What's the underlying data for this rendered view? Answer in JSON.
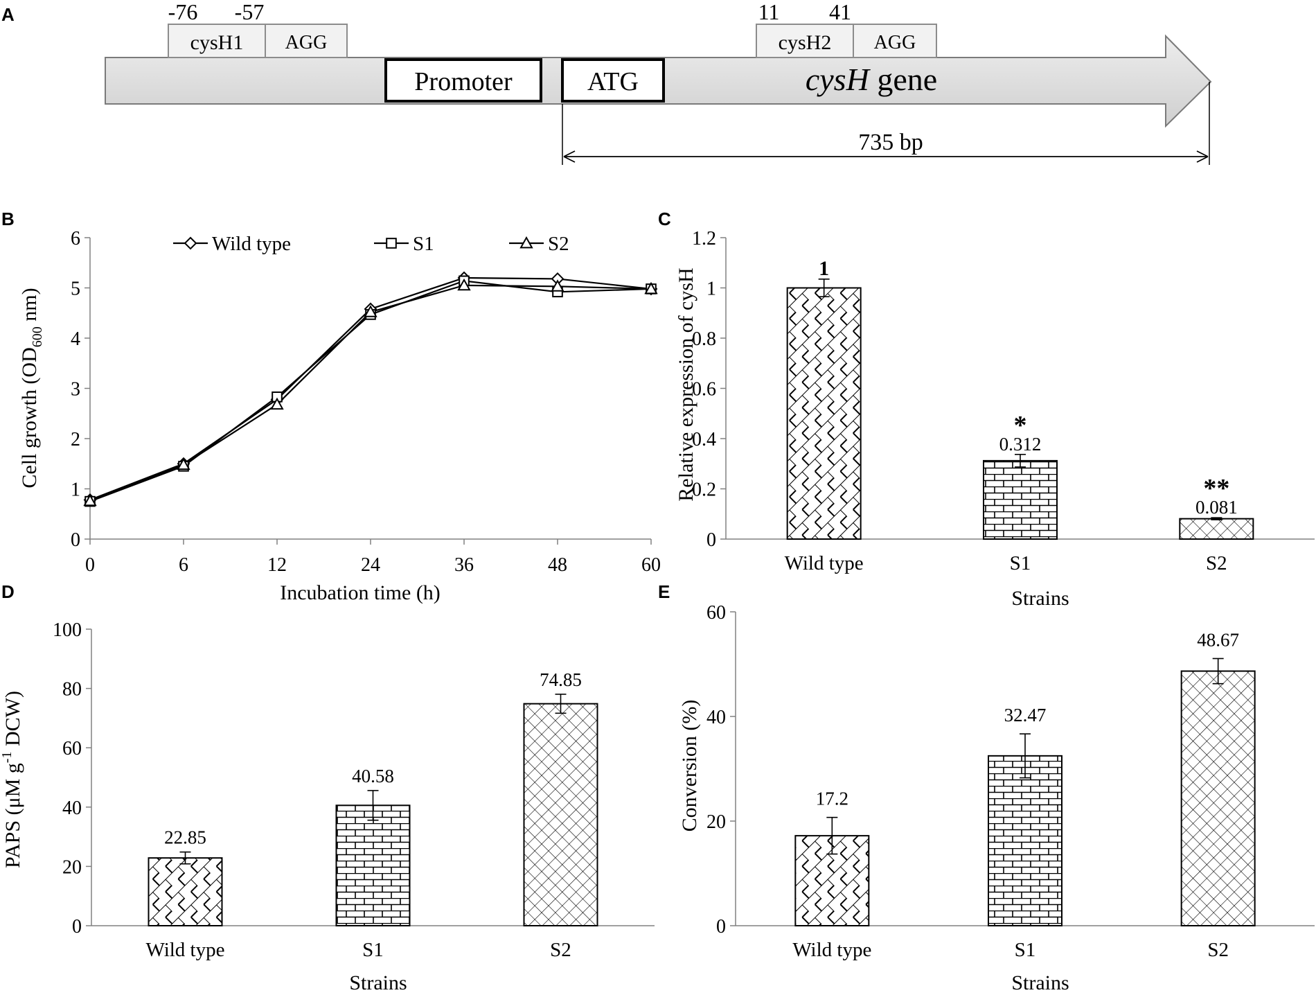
{
  "panel_labels": {
    "a": "A",
    "b": "B",
    "c": "C",
    "d": "D",
    "e": "E"
  },
  "gene_map": {
    "positions": {
      "p1": "-76",
      "p2": "-57",
      "p3": "11",
      "p4": "41"
    },
    "boxes": {
      "cysH1": "cysH1",
      "agg1": "AGG",
      "cysH2": "cysH2",
      "agg2": "AGG",
      "promoter": "Promoter",
      "atg": "ATG"
    },
    "gene_label_italic": "cysH",
    "gene_label_rest": " gene",
    "length_label": "735 bp"
  },
  "colors": {
    "axis": "#808080",
    "ink": "#000000",
    "arrow_fill": "#dcdcdc"
  },
  "chart_data": [
    {
      "id": "B",
      "type": "line",
      "title": "",
      "xlabel": "Incubation time (h)",
      "ylabel_main": "Cell growth (OD",
      "ylabel_sub": "600",
      "ylabel_tail": " nm)",
      "categories": [
        "0",
        "6",
        "12",
        "24",
        "36",
        "48",
        "60"
      ],
      "ylim": [
        0,
        6
      ],
      "yticks": [
        "0",
        "1",
        "2",
        "3",
        "4",
        "5",
        "6"
      ],
      "series": [
        {
          "name": "Wild type",
          "marker": "diamond",
          "values": [
            0.78,
            1.5,
            2.78,
            4.58,
            5.2,
            5.18,
            4.98
          ]
        },
        {
          "name": "S1",
          "marker": "square",
          "values": [
            0.75,
            1.45,
            2.83,
            4.47,
            5.14,
            4.92,
            4.98
          ]
        },
        {
          "name": "S2",
          "marker": "triangle",
          "values": [
            0.76,
            1.48,
            2.68,
            4.52,
            5.05,
            5.03,
            4.98
          ]
        }
      ]
    },
    {
      "id": "C",
      "type": "bar",
      "title": "",
      "xlabel": "Strains",
      "ylabel": "Relative expression of cysH",
      "categories": [
        "Wild type",
        "S1",
        "S2"
      ],
      "values": [
        1,
        0.312,
        0.081
      ],
      "errors": [
        0.035,
        0.025,
        0.004
      ],
      "data_labels": [
        "1",
        "0.312",
        "0.081"
      ],
      "significance": [
        "",
        "*",
        "**"
      ],
      "ylim": [
        0,
        1.2
      ],
      "yticks": [
        "0",
        "0.2",
        "0.4",
        "0.6",
        "0.8",
        "1",
        "1.2"
      ]
    },
    {
      "id": "D",
      "type": "bar",
      "title": "",
      "xlabel": "Strains",
      "ylabel_main": "PAPS (μM g",
      "ylabel_sup": "-1",
      "ylabel_tail": " DCW)",
      "categories": [
        "Wild type",
        "S1",
        "S2"
      ],
      "values": [
        22.85,
        40.58,
        74.85
      ],
      "errors": [
        2.0,
        5.0,
        3.2
      ],
      "data_labels": [
        "22.85",
        "40.58",
        "74.85"
      ],
      "ylim": [
        0,
        100
      ],
      "yticks": [
        "0",
        "20",
        "40",
        "60",
        "80",
        "100"
      ]
    },
    {
      "id": "E",
      "type": "bar",
      "title": "",
      "xlabel": "Strains",
      "ylabel": "Conversion (%)",
      "categories": [
        "Wild type",
        "S1",
        "S2"
      ],
      "values": [
        17.2,
        32.47,
        48.67
      ],
      "errors": [
        3.5,
        4.2,
        2.4
      ],
      "data_labels": [
        "17.2",
        "32.47",
        "48.67"
      ],
      "ylim": [
        0,
        60
      ],
      "yticks": [
        "0",
        "20",
        "40",
        "60"
      ]
    }
  ]
}
